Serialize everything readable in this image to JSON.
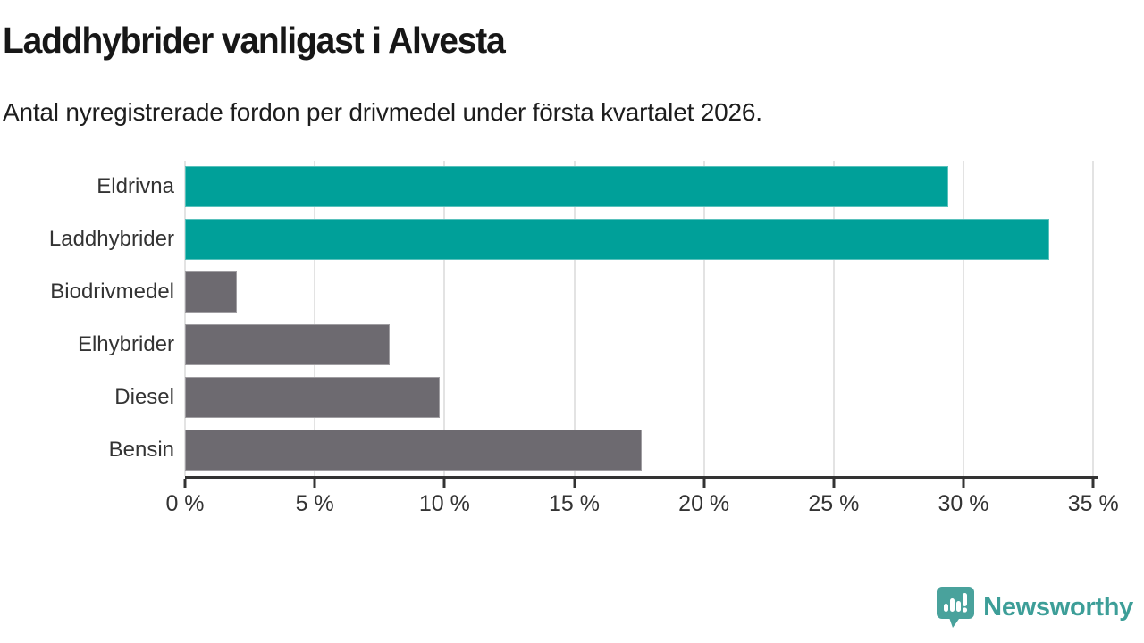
{
  "header": {
    "title": "Laddhybrider vanligast i Alvesta",
    "subtitle": "Antal nyregistrerade fordon per drivmedel under första kvartalet 2026."
  },
  "chart_data": {
    "type": "bar",
    "orientation": "horizontal",
    "title": "Laddhybrider vanligast i Alvesta",
    "subtitle": "Antal nyregistrerade fordon per drivmedel under första kvartalet 2026.",
    "categories": [
      "Eldrivna",
      "Laddhybrider",
      "Biodrivmedel",
      "Elhybrider",
      "Diesel",
      "Bensin"
    ],
    "values": [
      29.4,
      33.3,
      2.0,
      7.9,
      9.8,
      17.6
    ],
    "unit": "%",
    "bar_color_keys": [
      "accent",
      "accent",
      "muted",
      "muted",
      "muted",
      "muted"
    ],
    "colors": {
      "accent": "#00a099",
      "muted": "#6d6a70"
    },
    "x_ticks": [
      0,
      5,
      10,
      15,
      20,
      25,
      30,
      35
    ],
    "tick_suffix": " %",
    "xlim": [
      0,
      35.2
    ],
    "grid": true,
    "legend": false,
    "xlabel": "",
    "ylabel": ""
  },
  "footer": {
    "brand": "Newsworthy",
    "logo_icon": "newsworthy-chart-bubble-icon",
    "brand_color": "#3d9e98",
    "icon_color": "#49a29c"
  }
}
